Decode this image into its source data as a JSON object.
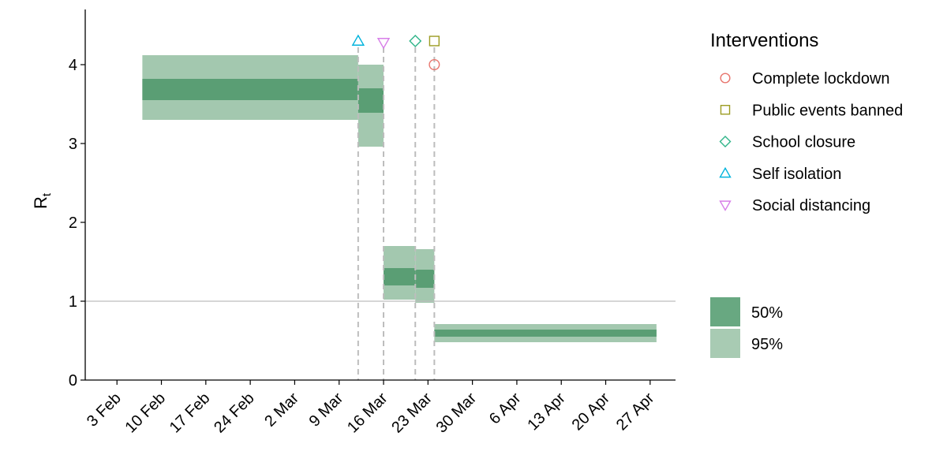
{
  "chart_data": {
    "type": "area",
    "ylabel": {
      "main": "R",
      "sub": "t"
    },
    "x_ticks": [
      "3 Feb",
      "10 Feb",
      "17 Feb",
      "24 Feb",
      "2 Mar",
      "9 Mar",
      "16 Mar",
      "23 Mar",
      "30 Mar",
      "6 Apr",
      "13 Apr",
      "20 Apr",
      "27 Apr"
    ],
    "x_tick_dates": [
      "2020-02-03",
      "2020-02-10",
      "2020-02-17",
      "2020-02-24",
      "2020-03-02",
      "2020-03-09",
      "2020-03-16",
      "2020-03-23",
      "2020-03-30",
      "2020-04-06",
      "2020-04-13",
      "2020-04-20",
      "2020-04-27"
    ],
    "xlim": [
      "2020-01-29",
      "2020-05-01"
    ],
    "ylim": [
      0,
      4.7
    ],
    "y_ticks": [
      0,
      1,
      2,
      3,
      4
    ],
    "reference_line": 1,
    "segments": [
      {
        "start": "2020-02-07",
        "end": "2020-03-12",
        "ci50": [
          3.55,
          3.82
        ],
        "ci95": [
          3.3,
          4.12
        ]
      },
      {
        "start": "2020-03-12",
        "end": "2020-03-16",
        "ci50": [
          3.39,
          3.7
        ],
        "ci95": [
          2.96,
          4.0
        ]
      },
      {
        "start": "2020-03-16",
        "end": "2020-03-21",
        "ci50": [
          1.2,
          1.42
        ],
        "ci95": [
          1.02,
          1.7
        ]
      },
      {
        "start": "2020-03-21",
        "end": "2020-03-24",
        "ci50": [
          1.17,
          1.4
        ],
        "ci95": [
          0.98,
          1.66
        ]
      },
      {
        "start": "2020-03-24",
        "end": "2020-04-28",
        "ci50": [
          0.55,
          0.64
        ],
        "ci95": [
          0.48,
          0.71
        ]
      }
    ],
    "interventions": [
      {
        "name": "Self isolation",
        "date": "2020-03-12",
        "marker": "triangle-up",
        "color": "#00b3dc",
        "y": 4.3
      },
      {
        "name": "Social distancing",
        "date": "2020-03-16",
        "marker": "triangle-down",
        "color": "#d77ee8",
        "y": 4.28
      },
      {
        "name": "School closure",
        "date": "2020-03-21",
        "marker": "diamond",
        "color": "#2fb489",
        "y": 4.3
      },
      {
        "name": "Public events banned",
        "date": "2020-03-24",
        "marker": "square",
        "color": "#9c9c22",
        "y": 4.3
      },
      {
        "name": "Complete lockdown",
        "date": "2020-03-24",
        "marker": "circle",
        "color": "#e8756d",
        "y": 4.0
      }
    ],
    "legend_interventions": {
      "title": "Interventions",
      "items": [
        {
          "label": "Complete lockdown",
          "marker": "circle",
          "color": "#e8756d"
        },
        {
          "label": "Public events banned",
          "marker": "square",
          "color": "#9c9c22"
        },
        {
          "label": "School closure",
          "marker": "diamond",
          "color": "#2fb489"
        },
        {
          "label": "Self isolation",
          "marker": "triangle-up",
          "color": "#00b3dc"
        },
        {
          "label": "Social distancing",
          "marker": "triangle-down",
          "color": "#d77ee8"
        }
      ]
    },
    "legend_ci": {
      "items": [
        {
          "label": "50%",
          "color": "#68a881"
        },
        {
          "label": "95%",
          "color": "#a8cbb3"
        }
      ]
    },
    "colors": {
      "ci50": "#5a9e74",
      "ci95": "#a3c8af",
      "reference_line": "#bdbdbd",
      "vline": "#bdbdbd"
    },
    "legend_placement": "right",
    "grid": false
  }
}
